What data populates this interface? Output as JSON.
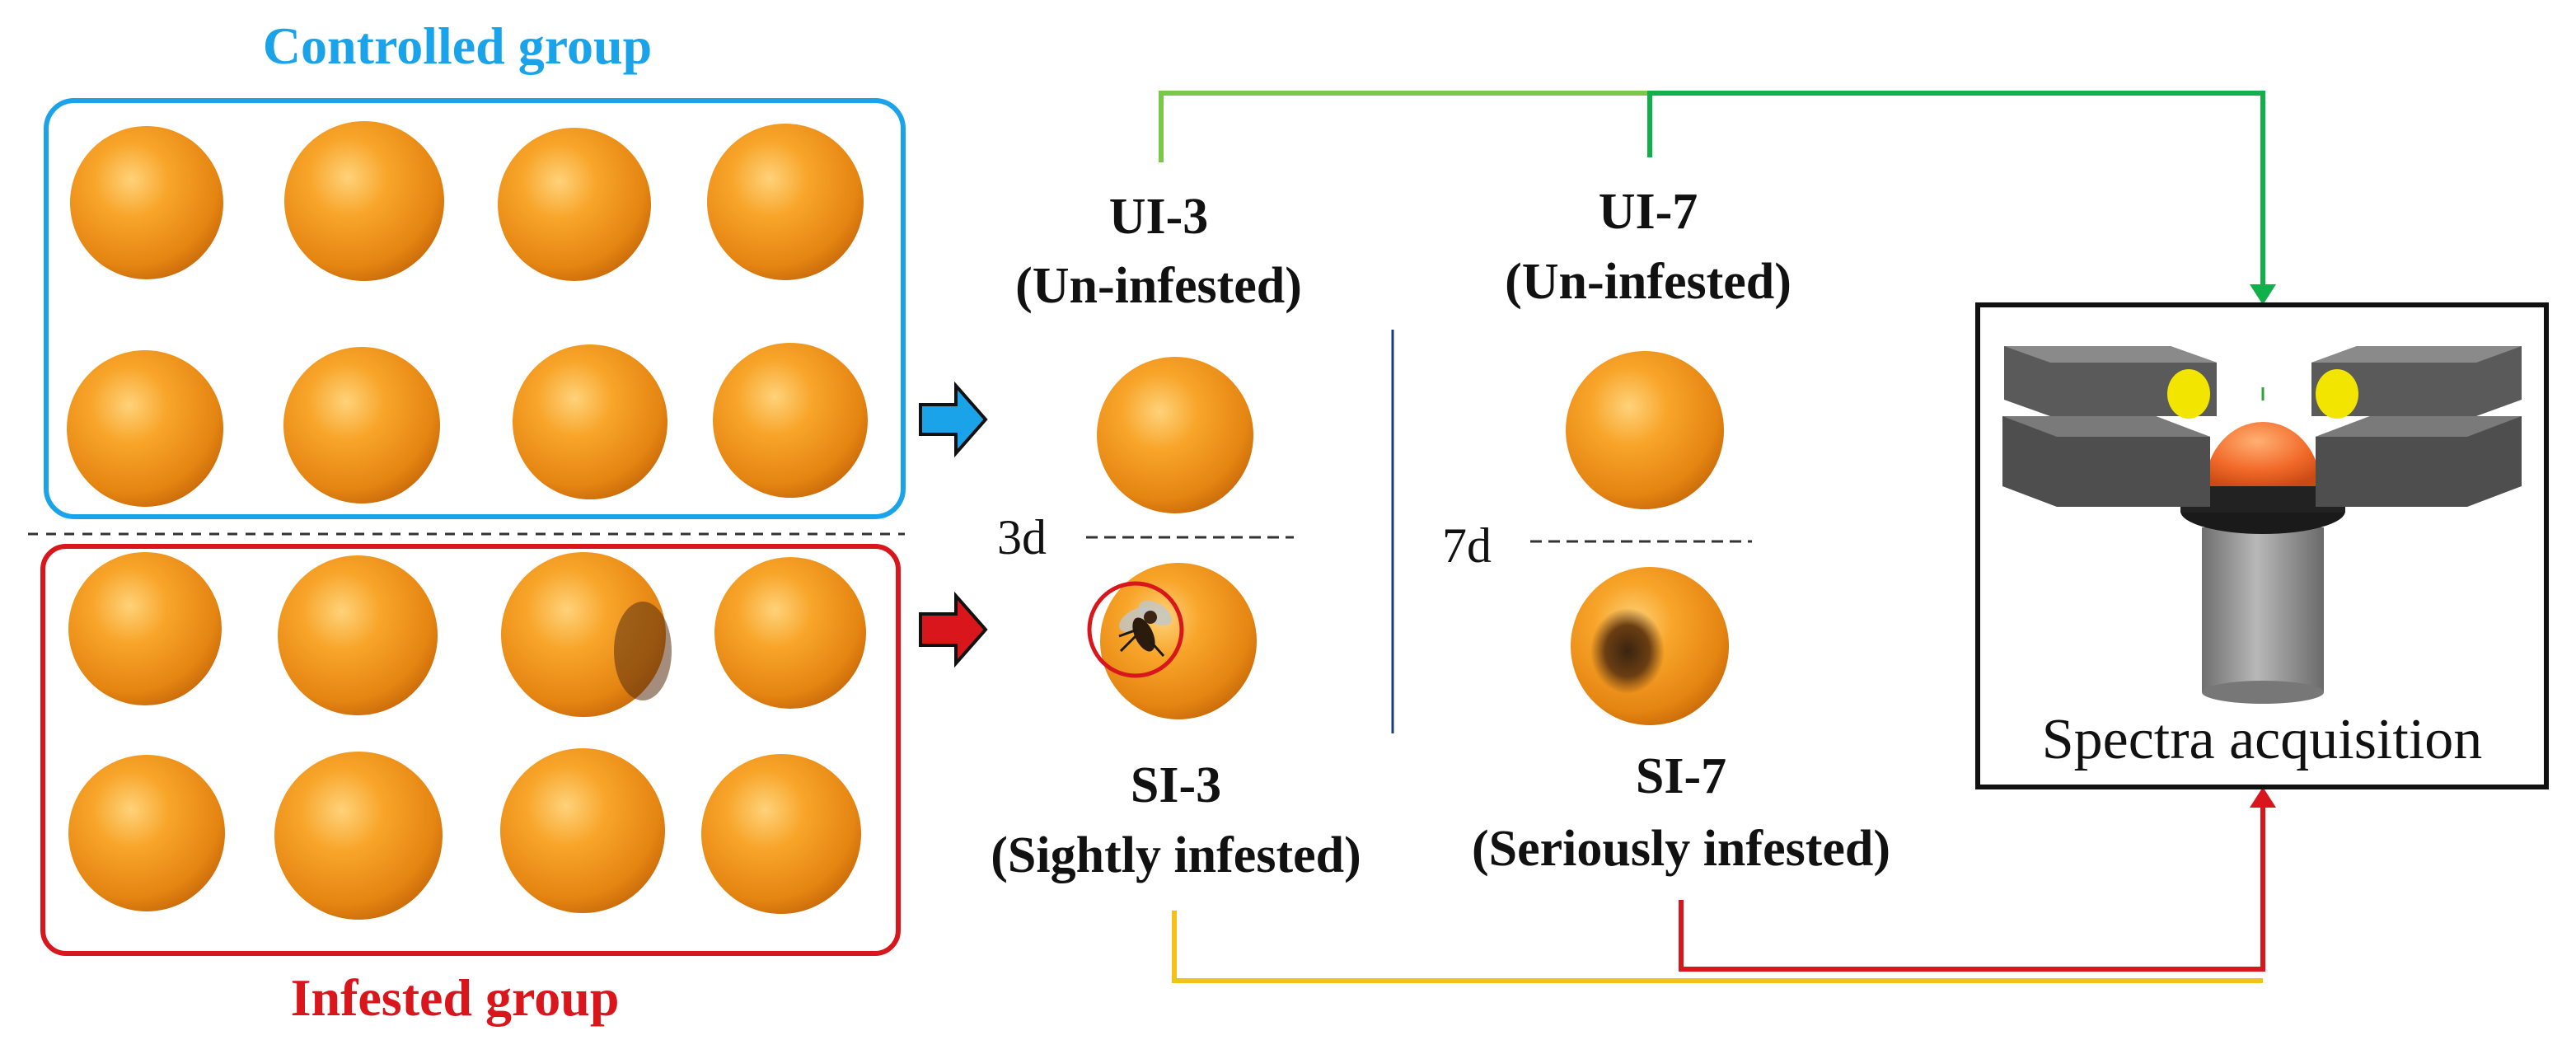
{
  "groups": {
    "controlled": {
      "title": "Controlled group",
      "color": "#1aa3e8"
    },
    "infested": {
      "title": "Infested group",
      "color": "#d9161c"
    }
  },
  "stages": {
    "ui3": {
      "code": "UI-3",
      "desc": "(Un-infested)"
    },
    "ui7": {
      "code": "UI-7",
      "desc": "(Un-infested)"
    },
    "si3": {
      "code": "SI-3",
      "desc": "(Sightly infested)"
    },
    "si7": {
      "code": "SI-7",
      "desc": "(Seriously infested)"
    }
  },
  "days": {
    "d3": "3d",
    "d7": "7d"
  },
  "device": {
    "label": "Spectra acquisition"
  },
  "colors": {
    "orange": "#f39a1f",
    "arrow_blue": "#1aa3e8",
    "arrow_red": "#d9161c",
    "line_light_green": "#7bc74a",
    "line_green": "#12b04a",
    "line_red": "#d9161c",
    "line_yellow": "#f2c21b"
  }
}
